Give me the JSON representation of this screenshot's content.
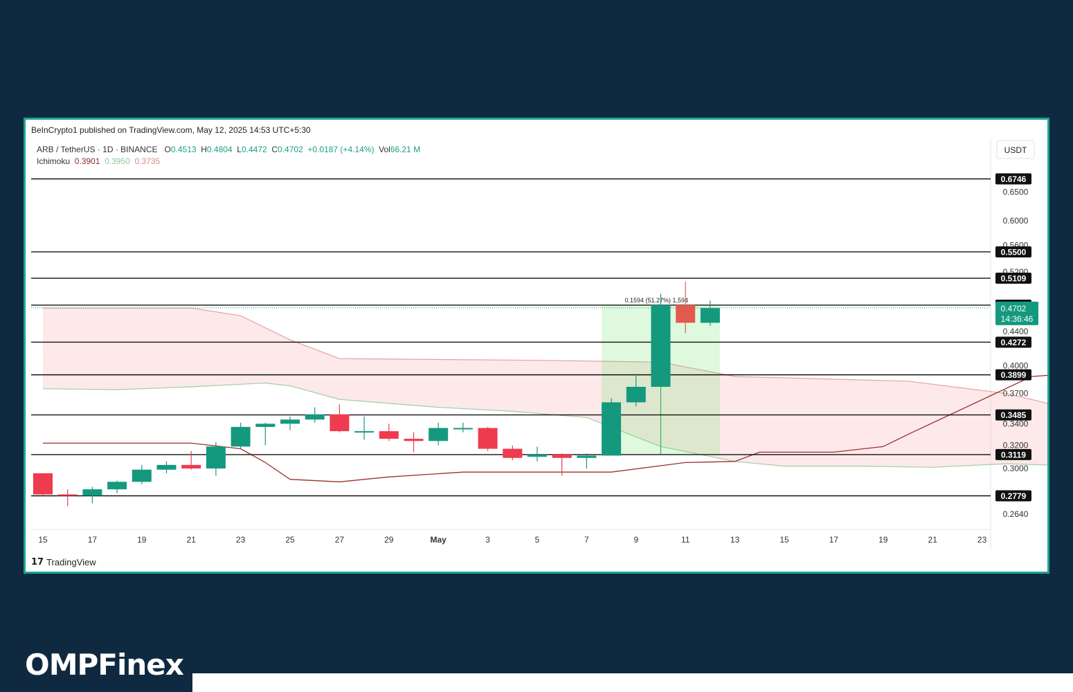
{
  "published": "BeInCrypto1 published on TradingView.com, May 12, 2025 14:53 UTC+5:30",
  "legend": {
    "pair": "ARB / TetherUS · 1D · BINANCE",
    "o_label": "O",
    "o": "0.4513",
    "h_label": "H",
    "h": "0.4804",
    "l_label": "L",
    "l": "0.4472",
    "c_label": "C",
    "c": "0.4702",
    "change": "+0.0187 (+4.14%)",
    "vol_label": "Vol",
    "vol": "66.21 M",
    "ichimoku_label": "Ichimoku",
    "ich1": "0.3901",
    "ich2": "0.3950",
    "ich3": "0.3735"
  },
  "currency": "USDT",
  "countdown": "14:36:46",
  "tradingview_logo": "TradingView",
  "brand": "OMPFinex",
  "colors": {
    "up": "#14997f",
    "down": "#ef3b4e",
    "down_light": "#e25a4e",
    "frame": "#1aa88f",
    "background": "#0f2a40"
  },
  "chart_data": {
    "type": "candlestick",
    "symbol": "ARB / TetherUS",
    "x_tick_labels": [
      "15",
      "17",
      "19",
      "21",
      "23",
      "25",
      "27",
      "29",
      "May",
      "3",
      "5",
      "7",
      "9",
      "11",
      "13",
      "15",
      "17",
      "19",
      "21",
      "23"
    ],
    "price_axis_labels": [
      "0.6500",
      "0.6000",
      "0.5600",
      "0.5200",
      "0.4400",
      "0.4000",
      "0.3700",
      "0.3400",
      "0.3200",
      "0.3000",
      "0.2640"
    ],
    "horizontal_levels": [
      "0.6746",
      "0.5500",
      "0.5109",
      "0.4738",
      "0.4272",
      "0.3899",
      "0.3485",
      "0.3119",
      "0.2779"
    ],
    "current_price": "0.4702",
    "measure_label": "0.1594 (51.27%) 1,594",
    "candles": [
      {
        "d": "Apr 15",
        "o": 0.296,
        "h": 0.296,
        "l": 0.278,
        "c": 0.279
      },
      {
        "d": "Apr 16",
        "o": 0.279,
        "h": 0.283,
        "l": 0.27,
        "c": 0.278
      },
      {
        "d": "Apr 17",
        "o": 0.278,
        "h": 0.285,
        "l": 0.272,
        "c": 0.283
      },
      {
        "d": "Apr 18",
        "o": 0.283,
        "h": 0.29,
        "l": 0.28,
        "c": 0.289
      },
      {
        "d": "Apr 19",
        "o": 0.289,
        "h": 0.303,
        "l": 0.287,
        "c": 0.299
      },
      {
        "d": "Apr 20",
        "o": 0.299,
        "h": 0.306,
        "l": 0.296,
        "c": 0.303
      },
      {
        "d": "Apr 21",
        "o": 0.303,
        "h": 0.315,
        "l": 0.299,
        "c": 0.3
      },
      {
        "d": "Apr 22",
        "o": 0.3,
        "h": 0.323,
        "l": 0.294,
        "c": 0.319
      },
      {
        "d": "Apr 23",
        "o": 0.319,
        "h": 0.341,
        "l": 0.317,
        "c": 0.337
      },
      {
        "d": "Apr 24",
        "o": 0.337,
        "h": 0.341,
        "l": 0.32,
        "c": 0.34
      },
      {
        "d": "Apr 25",
        "o": 0.34,
        "h": 0.347,
        "l": 0.334,
        "c": 0.344
      },
      {
        "d": "Apr 26",
        "o": 0.344,
        "h": 0.356,
        "l": 0.341,
        "c": 0.349
      },
      {
        "d": "Apr 27",
        "o": 0.349,
        "h": 0.359,
        "l": 0.332,
        "c": 0.333
      },
      {
        "d": "Apr 28",
        "o": 0.333,
        "h": 0.347,
        "l": 0.325,
        "c": 0.333
      },
      {
        "d": "Apr 29",
        "o": 0.333,
        "h": 0.34,
        "l": 0.324,
        "c": 0.326
      },
      {
        "d": "Apr 30",
        "o": 0.326,
        "h": 0.332,
        "l": 0.314,
        "c": 0.324
      },
      {
        "d": "May 1",
        "o": 0.324,
        "h": 0.341,
        "l": 0.32,
        "c": 0.336
      },
      {
        "d": "May 2",
        "o": 0.336,
        "h": 0.341,
        "l": 0.332,
        "c": 0.336
      },
      {
        "d": "May 3",
        "o": 0.336,
        "h": 0.337,
        "l": 0.315,
        "c": 0.317
      },
      {
        "d": "May 4",
        "o": 0.317,
        "h": 0.32,
        "l": 0.307,
        "c": 0.309
      },
      {
        "d": "May 5",
        "o": 0.31,
        "h": 0.319,
        "l": 0.306,
        "c": 0.312
      },
      {
        "d": "May 6",
        "o": 0.312,
        "h": 0.313,
        "l": 0.294,
        "c": 0.309
      },
      {
        "d": "May 7",
        "o": 0.309,
        "h": 0.313,
        "l": 0.3,
        "c": 0.311
      },
      {
        "d": "May 8",
        "o": 0.311,
        "h": 0.365,
        "l": 0.311,
        "c": 0.361
      },
      {
        "d": "May 9",
        "o": 0.361,
        "h": 0.39,
        "l": 0.357,
        "c": 0.377
      },
      {
        "d": "May 10",
        "o": 0.377,
        "h": 0.489,
        "l": 0.377,
        "c": 0.474
      },
      {
        "d": "May 11",
        "o": 0.474,
        "h": 0.506,
        "l": 0.438,
        "c": 0.451
      },
      {
        "d": "May 12",
        "o": 0.451,
        "h": 0.48,
        "l": 0.447,
        "c": 0.47
      }
    ]
  }
}
